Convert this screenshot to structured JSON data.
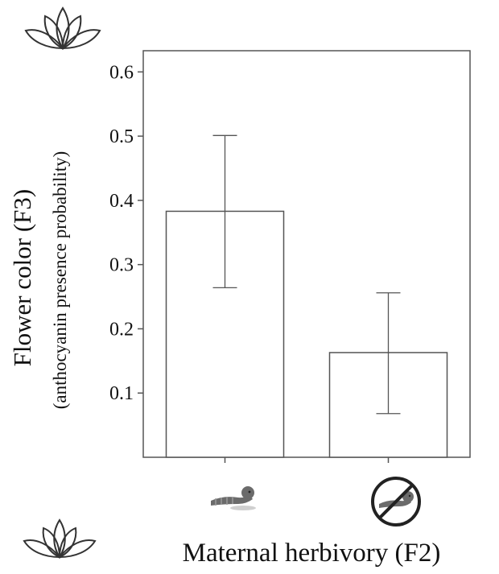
{
  "chart_data": {
    "type": "bar",
    "categories": [
      "herbivory",
      "no herbivory"
    ],
    "category_icons": [
      "caterpillar-icon",
      "no-caterpillar-icon"
    ],
    "values": [
      0.383,
      0.163
    ],
    "error_upper": [
      0.501,
      0.256
    ],
    "error_lower": [
      0.264,
      0.068
    ],
    "ylim": [
      0,
      0.6
    ],
    "yticks": [
      0.1,
      0.2,
      0.3,
      0.4,
      0.5,
      0.6
    ],
    "ytick_labels": [
      "0.1",
      "0.2",
      "0.3",
      "0.4",
      "0.5",
      "0.6"
    ],
    "ylabel": "Flower color (F3)",
    "ylabel_sub": "(anthocyanin presence probability)",
    "xlabel": "Maternal herbivory (F2)",
    "grid": false,
    "legend": "none"
  },
  "decorations": {
    "top_icon": "lotus-flower-icon",
    "bottom_icon": "lotus-flower-icon"
  },
  "colors": {
    "bar_fill": "#ffffff",
    "bar_stroke": "#555555",
    "axis": "#555555",
    "error_bar": "#555555",
    "caterpillar": "#6b6b6b",
    "prohibition_ring": "#222222"
  }
}
